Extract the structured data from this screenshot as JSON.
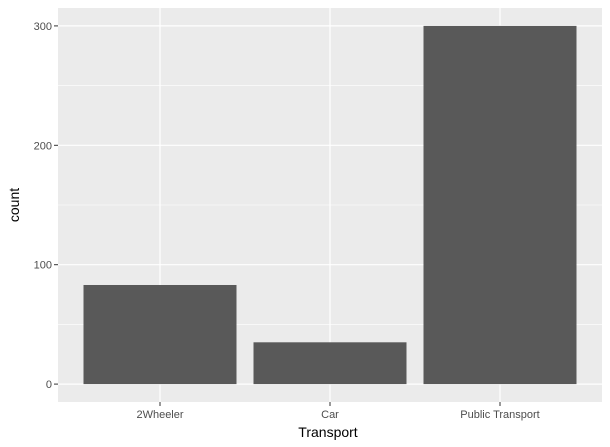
{
  "chart_data": {
    "type": "bar",
    "categories": [
      "2Wheeler",
      "Car",
      "Public Transport"
    ],
    "values": [
      83,
      35,
      300
    ],
    "xlabel": "Transport",
    "ylabel": "count",
    "ylim": [
      -15,
      315
    ],
    "yticks": [
      0,
      100,
      200,
      300
    ],
    "grid": true,
    "colors": {
      "panel": "#EBEBEB",
      "grid_major": "#FFFFFF",
      "bar": "#595959",
      "tick_text": "#4D4D4D",
      "tick_mark": "#333333"
    }
  }
}
